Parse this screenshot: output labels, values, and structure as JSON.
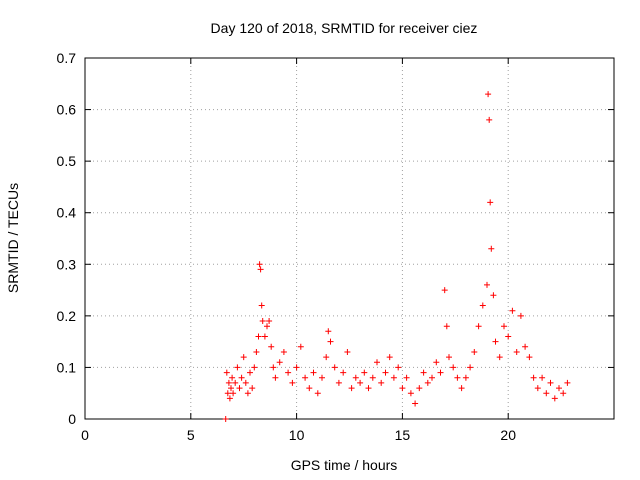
{
  "chart_data": {
    "type": "scatter",
    "title": "Day 120 of 2018, SRMTID for receiver ciez",
    "xlabel": "GPS time / hours",
    "ylabel": "SRMTID / TECUs",
    "xlim": [
      0,
      25
    ],
    "ylim": [
      0,
      0.7
    ],
    "xticks": [
      0,
      5,
      10,
      15,
      20
    ],
    "xtick_labels": [
      "0",
      "5",
      "10",
      "15",
      "20"
    ],
    "yticks": [
      0,
      0.1,
      0.2,
      0.3,
      0.4,
      0.5,
      0.6,
      0.7
    ],
    "ytick_labels": [
      "0",
      "0.1",
      "0.2",
      "0.3",
      "0.4",
      "0.5",
      "0.6",
      "0.7"
    ],
    "grid": true,
    "marker": "+",
    "color": "#ff0000",
    "series": [
      {
        "name": "SRMTID",
        "points": [
          [
            6.65,
            0.0
          ],
          [
            6.7,
            0.09
          ],
          [
            6.75,
            0.05
          ],
          [
            6.8,
            0.07
          ],
          [
            6.85,
            0.04
          ],
          [
            6.9,
            0.06
          ],
          [
            6.95,
            0.08
          ],
          [
            7.0,
            0.05
          ],
          [
            7.1,
            0.07
          ],
          [
            7.2,
            0.1
          ],
          [
            7.3,
            0.06
          ],
          [
            7.4,
            0.08
          ],
          [
            7.5,
            0.12
          ],
          [
            7.6,
            0.07
          ],
          [
            7.7,
            0.05
          ],
          [
            7.8,
            0.09
          ],
          [
            7.9,
            0.06
          ],
          [
            8.0,
            0.1
          ],
          [
            8.1,
            0.13
          ],
          [
            8.2,
            0.16
          ],
          [
            8.25,
            0.3
          ],
          [
            8.3,
            0.29
          ],
          [
            8.35,
            0.22
          ],
          [
            8.4,
            0.19
          ],
          [
            8.5,
            0.16
          ],
          [
            8.6,
            0.18
          ],
          [
            8.7,
            0.19
          ],
          [
            8.8,
            0.14
          ],
          [
            8.9,
            0.1
          ],
          [
            9.0,
            0.08
          ],
          [
            9.2,
            0.11
          ],
          [
            9.4,
            0.13
          ],
          [
            9.6,
            0.09
          ],
          [
            9.8,
            0.07
          ],
          [
            10.0,
            0.1
          ],
          [
            10.2,
            0.14
          ],
          [
            10.4,
            0.08
          ],
          [
            10.6,
            0.06
          ],
          [
            10.8,
            0.09
          ],
          [
            11.0,
            0.05
          ],
          [
            11.2,
            0.08
          ],
          [
            11.4,
            0.12
          ],
          [
            11.5,
            0.17
          ],
          [
            11.6,
            0.15
          ],
          [
            11.8,
            0.1
          ],
          [
            12.0,
            0.07
          ],
          [
            12.2,
            0.09
          ],
          [
            12.4,
            0.13
          ],
          [
            12.6,
            0.06
          ],
          [
            12.8,
            0.08
          ],
          [
            13.0,
            0.07
          ],
          [
            13.2,
            0.09
          ],
          [
            13.4,
            0.06
          ],
          [
            13.6,
            0.08
          ],
          [
            13.8,
            0.11
          ],
          [
            14.0,
            0.07
          ],
          [
            14.2,
            0.09
          ],
          [
            14.4,
            0.12
          ],
          [
            14.6,
            0.08
          ],
          [
            14.8,
            0.1
          ],
          [
            15.0,
            0.06
          ],
          [
            15.2,
            0.08
          ],
          [
            15.4,
            0.05
          ],
          [
            15.6,
            0.03
          ],
          [
            15.8,
            0.06
          ],
          [
            16.0,
            0.09
          ],
          [
            16.2,
            0.07
          ],
          [
            16.4,
            0.08
          ],
          [
            16.6,
            0.11
          ],
          [
            16.8,
            0.09
          ],
          [
            17.0,
            0.25
          ],
          [
            17.1,
            0.18
          ],
          [
            17.2,
            0.12
          ],
          [
            17.4,
            0.1
          ],
          [
            17.6,
            0.08
          ],
          [
            17.8,
            0.06
          ],
          [
            18.0,
            0.08
          ],
          [
            18.2,
            0.1
          ],
          [
            18.4,
            0.13
          ],
          [
            18.6,
            0.18
          ],
          [
            18.8,
            0.22
          ],
          [
            19.0,
            0.26
          ],
          [
            19.05,
            0.63
          ],
          [
            19.1,
            0.58
          ],
          [
            19.15,
            0.42
          ],
          [
            19.2,
            0.33
          ],
          [
            19.3,
            0.24
          ],
          [
            19.4,
            0.15
          ],
          [
            19.6,
            0.12
          ],
          [
            19.8,
            0.18
          ],
          [
            20.0,
            0.16
          ],
          [
            20.2,
            0.21
          ],
          [
            20.4,
            0.13
          ],
          [
            20.6,
            0.2
          ],
          [
            20.8,
            0.14
          ],
          [
            21.0,
            0.12
          ],
          [
            21.2,
            0.08
          ],
          [
            21.4,
            0.06
          ],
          [
            21.6,
            0.08
          ],
          [
            21.8,
            0.05
          ],
          [
            22.0,
            0.07
          ],
          [
            22.2,
            0.04
          ],
          [
            22.4,
            0.06
          ],
          [
            22.6,
            0.05
          ],
          [
            22.8,
            0.07
          ]
        ]
      }
    ]
  }
}
